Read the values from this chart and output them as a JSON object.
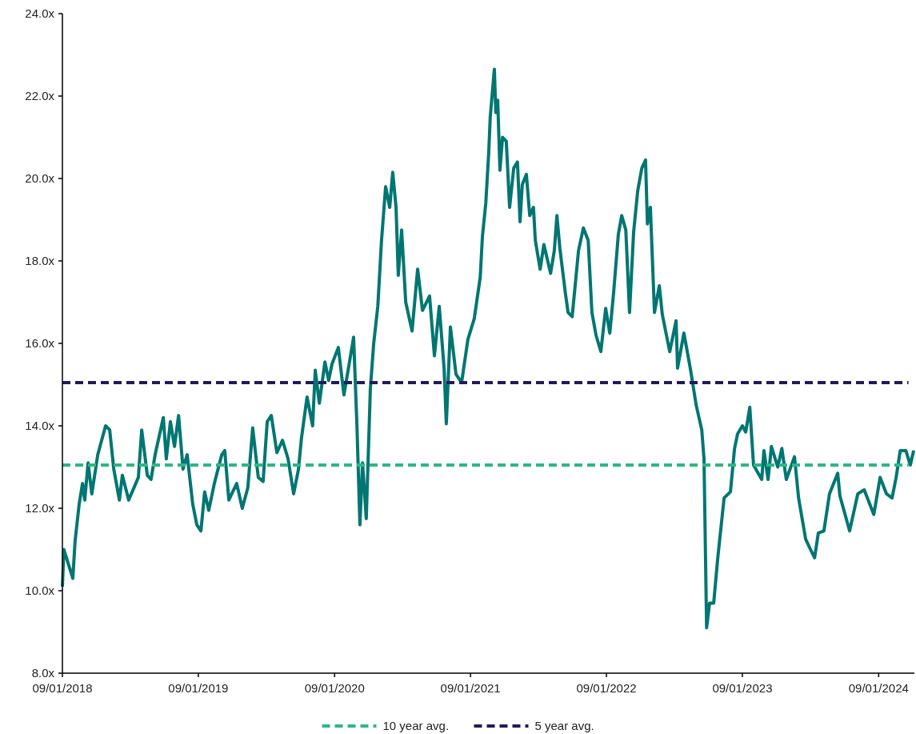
{
  "chart_data": {
    "type": "line",
    "legend": "bottom",
    "xlim": [
      "2018-09-01",
      "2024-12-06"
    ],
    "xticks": [
      {
        "value": "2018-09-01",
        "label": "09/01/2018"
      },
      {
        "value": "2019-09-01",
        "label": "09/01/2019"
      },
      {
        "value": "2020-09-01",
        "label": "09/01/2020"
      },
      {
        "value": "2021-09-01",
        "label": "09/01/2021"
      },
      {
        "value": "2022-09-01",
        "label": "09/01/2022"
      },
      {
        "value": "2023-09-01",
        "label": "09/01/2023"
      },
      {
        "value": "2024-09-01",
        "label": "09/01/2024"
      }
    ],
    "ylim": [
      8,
      24
    ],
    "yticks": [
      {
        "value": 8,
        "label": "8.0x"
      },
      {
        "value": 10,
        "label": "10.0x"
      },
      {
        "value": 12,
        "label": "12.0x"
      },
      {
        "value": 14,
        "label": "14.0x"
      },
      {
        "value": 16,
        "label": "16.0x"
      },
      {
        "value": 18,
        "label": "18.0x"
      },
      {
        "value": 20,
        "label": "20.0x"
      },
      {
        "value": 22,
        "label": "22.0x"
      },
      {
        "value": 24,
        "label": "24.0x"
      }
    ],
    "series": [
      {
        "color": "#007672",
        "line_style": "solid",
        "x": [
          "2018-09-01",
          "2018-09-05",
          "2018-09-29",
          "2018-10-05",
          "2018-10-16",
          "2018-10-25",
          "2018-10-31",
          "2018-11-09",
          "2018-11-19",
          "2018-12-05",
          "2018-12-26",
          "2019-01-06",
          "2019-01-17",
          "2019-02-01",
          "2019-02-09",
          "2019-02-26",
          "2019-03-24",
          "2019-04-02",
          "2019-04-17",
          "2019-04-27",
          "2019-05-08",
          "2019-05-30",
          "2019-06-07",
          "2019-06-18",
          "2019-06-29",
          "2019-07-10",
          "2019-07-22",
          "2019-08-02",
          "2019-08-17",
          "2019-08-28",
          "2019-09-08",
          "2019-09-18",
          "2019-09-29",
          "2019-10-14",
          "2019-11-03",
          "2019-11-11",
          "2019-11-22",
          "2019-12-13",
          "2019-12-28",
          "2020-01-12",
          "2020-01-25",
          "2020-02-09",
          "2020-02-22",
          "2020-03-04",
          "2020-03-15",
          "2020-03-30",
          "2020-04-14",
          "2020-04-29",
          "2020-05-14",
          "2020-05-27",
          "2020-06-04",
          "2020-06-19",
          "2020-07-04",
          "2020-07-11",
          "2020-07-22",
          "2020-08-06",
          "2020-08-16",
          "2020-08-25",
          "2020-09-11",
          "2020-09-26",
          "2020-10-11",
          "2020-10-22",
          "2020-10-31",
          "2020-11-08",
          "2020-11-15",
          "2020-11-25",
          "2020-12-06",
          "2020-12-15",
          "2020-12-26",
          "2021-01-05",
          "2021-01-16",
          "2021-01-27",
          "2021-02-04",
          "2021-02-13",
          "2021-02-19",
          "2021-02-28",
          "2021-03-11",
          "2021-03-28",
          "2021-04-12",
          "2021-04-25",
          "2021-05-14",
          "2021-05-27",
          "2021-06-09",
          "2021-06-22",
          "2021-06-28",
          "2021-07-09",
          "2021-07-24",
          "2021-08-08",
          "2021-08-25",
          "2021-09-11",
          "2021-09-27",
          "2021-10-03",
          "2021-10-12",
          "2021-10-20",
          "2021-10-24",
          "2021-11-04",
          "2021-11-08",
          "2021-11-13",
          "2021-11-19",
          "2021-11-26",
          "2021-12-06",
          "2021-12-15",
          "2021-12-26",
          "2022-01-05",
          "2022-01-12",
          "2022-01-18",
          "2022-01-29",
          "2022-02-07",
          "2022-02-17",
          "2022-02-22",
          "2022-03-07",
          "2022-03-17",
          "2022-04-04",
          "2022-04-14",
          "2022-04-21",
          "2022-04-29",
          "2022-05-14",
          "2022-05-21",
          "2022-06-01",
          "2022-06-18",
          "2022-07-01",
          "2022-07-14",
          "2022-07-24",
          "2022-08-04",
          "2022-08-17",
          "2022-08-30",
          "2022-09-10",
          "2022-09-20",
          "2022-10-03",
          "2022-10-12",
          "2022-10-23",
          "2022-11-02",
          "2022-11-13",
          "2022-11-24",
          "2022-12-05",
          "2022-12-15",
          "2022-12-20",
          "2022-12-28",
          "2023-01-08",
          "2023-01-21",
          "2023-01-29",
          "2023-02-18",
          "2023-03-07",
          "2023-03-11",
          "2023-03-28",
          "2023-04-15",
          "2023-04-30",
          "2023-05-15",
          "2023-05-21",
          "2023-05-28",
          "2023-06-05",
          "2023-06-16",
          "2023-06-27",
          "2023-07-14",
          "2023-07-31",
          "2023-08-11",
          "2023-08-19",
          "2023-09-01",
          "2023-09-10",
          "2023-09-21",
          "2023-10-01",
          "2023-10-23",
          "2023-10-29",
          "2023-11-09",
          "2023-11-18",
          "2023-12-05",
          "2023-12-16",
          "2023-12-28",
          "2024-01-19",
          "2024-01-30",
          "2024-02-18",
          "2024-03-02",
          "2024-03-13",
          "2024-03-23",
          "2024-04-07",
          "2024-04-22",
          "2024-05-14",
          "2024-05-20",
          "2024-06-15",
          "2024-07-07",
          "2024-07-24",
          "2024-08-19",
          "2024-09-05",
          "2024-09-22",
          "2024-10-07",
          "2024-10-18",
          "2024-10-29",
          "2024-11-13",
          "2024-11-25",
          "2024-12-04"
        ],
        "values": [
          10.1,
          11.0,
          10.3,
          11.2,
          12.1,
          12.6,
          12.2,
          13.1,
          12.35,
          13.3,
          14.0,
          13.9,
          12.95,
          12.2,
          12.8,
          12.2,
          12.75,
          13.9,
          12.8,
          12.7,
          13.3,
          14.2,
          13.2,
          14.1,
          13.5,
          14.25,
          12.95,
          13.3,
          12.1,
          11.6,
          11.45,
          12.4,
          11.95,
          12.6,
          13.3,
          13.4,
          12.2,
          12.6,
          12.0,
          12.5,
          13.95,
          12.75,
          12.65,
          14.1,
          14.25,
          13.35,
          13.65,
          13.2,
          12.35,
          12.95,
          13.7,
          14.7,
          14.0,
          15.35,
          14.55,
          15.55,
          15.1,
          15.5,
          15.9,
          14.75,
          15.55,
          16.15,
          14.0,
          11.6,
          13.1,
          11.75,
          14.9,
          16.0,
          16.9,
          18.5,
          19.8,
          19.3,
          20.15,
          19.3,
          17.65,
          18.75,
          17.0,
          16.3,
          17.8,
          16.8,
          17.15,
          15.7,
          16.9,
          15.4,
          14.05,
          16.4,
          15.25,
          15.05,
          16.1,
          16.6,
          17.6,
          18.6,
          19.4,
          20.65,
          21.5,
          22.65,
          21.6,
          21.9,
          20.2,
          21.0,
          20.9,
          19.3,
          20.25,
          20.4,
          18.95,
          19.85,
          20.1,
          19.1,
          19.3,
          18.5,
          17.8,
          18.4,
          17.7,
          18.25,
          19.1,
          18.3,
          17.2,
          16.75,
          16.65,
          18.25,
          18.8,
          18.5,
          16.75,
          16.2,
          15.8,
          16.85,
          16.25,
          17.2,
          18.65,
          19.1,
          18.75,
          16.75,
          18.7,
          19.7,
          20.25,
          20.45,
          18.9,
          19.3,
          16.75,
          17.4,
          16.7,
          15.8,
          16.55,
          15.4,
          16.25,
          15.35,
          14.5,
          13.9,
          13.2,
          9.1,
          9.7,
          9.7,
          10.8,
          12.25,
          12.4,
          13.45,
          13.8,
          14.0,
          13.85,
          14.45,
          13.05,
          12.7,
          13.4,
          12.7,
          13.5,
          13.0,
          13.45,
          12.7,
          13.25,
          12.25,
          11.25,
          11.0,
          10.8,
          11.4,
          11.45,
          12.35,
          12.85,
          12.3,
          11.45,
          12.35,
          12.45,
          11.85,
          12.75,
          12.35,
          12.25,
          12.75,
          13.4,
          13.4,
          13.05,
          13.4
        ]
      },
      {
        "name": "10 year avg.",
        "color": "#2db783",
        "line_style": "dashed",
        "x": [
          "2018-09-01",
          "2024-11-20"
        ],
        "values": [
          13.05,
          13.05
        ]
      },
      {
        "name": "5 year avg.",
        "color": "#221a5c",
        "line_style": "dashed",
        "x": [
          "2018-09-01",
          "2024-11-20"
        ],
        "values": [
          15.05,
          15.05
        ]
      }
    ]
  }
}
